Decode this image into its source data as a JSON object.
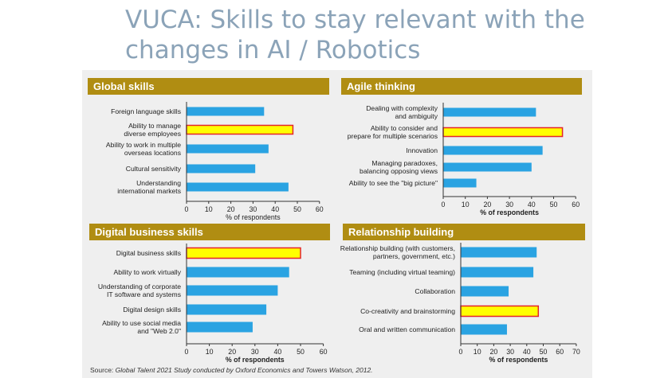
{
  "title": "VUCA: Skills to stay relevant with the changes in AI / Robotics",
  "colors": {
    "bar": "#2aa3e2",
    "highlight_fill": "#ffff00",
    "highlight_border": "#e4242b",
    "panel_header": "#b08d12",
    "panel_header_text": "#ffffff"
  },
  "source": {
    "prefix": "Source: ",
    "italic": "Global Talent 2021 Study conducted by Oxford Economics and Towers Watson, 2012."
  },
  "chart_data": [
    {
      "type": "bar",
      "orientation": "horizontal",
      "title": "Global skills",
      "xlabel": "% of respondents",
      "xlim": [
        0,
        60
      ],
      "ticks": [
        0,
        10,
        20,
        30,
        40,
        50,
        60
      ],
      "categories": [
        [
          "Foreign language skills"
        ],
        [
          "Ability to manage",
          "diverse employees"
        ],
        [
          "Ability to work in multiple",
          "overseas locations"
        ],
        [
          "Cultural sensitivity"
        ],
        [
          "Understanding",
          "international markets"
        ]
      ],
      "values": [
        35,
        48,
        37,
        31,
        46
      ],
      "highlight": [
        1
      ]
    },
    {
      "type": "bar",
      "orientation": "horizontal",
      "title": "Agile thinking",
      "xlabel": "% of respondents",
      "xlim": [
        0,
        60
      ],
      "ticks": [
        0,
        10,
        20,
        30,
        40,
        50,
        60
      ],
      "categories": [
        [
          "Dealing with complexity",
          "and ambiguity"
        ],
        [
          "Ability to consider and",
          "prepare for multiple scenarios"
        ],
        [
          "Innovation"
        ],
        [
          "Managing paradoxes,",
          "balancing opposing views"
        ],
        [
          "Ability to see the \"big picture\""
        ]
      ],
      "values": [
        42,
        54,
        45,
        40,
        15
      ],
      "highlight": [
        1
      ]
    },
    {
      "type": "bar",
      "orientation": "horizontal",
      "title": "Digital business skills",
      "xlabel": "% of respondents",
      "xlim": [
        0,
        60
      ],
      "ticks": [
        0,
        10,
        20,
        30,
        40,
        50,
        60
      ],
      "categories": [
        [
          "Digital business skills"
        ],
        [
          "Ability to work virtually"
        ],
        [
          "Understanding of corporate",
          "IT software and systems"
        ],
        [
          "Digital design skills"
        ],
        [
          "Ability to use social media",
          "and \"Web 2.0\""
        ]
      ],
      "values": [
        50,
        45,
        40,
        35,
        29
      ],
      "highlight": [
        0
      ]
    },
    {
      "type": "bar",
      "orientation": "horizontal",
      "title": "Relationship building",
      "xlabel": "% of respondents",
      "xlim": [
        0,
        70
      ],
      "ticks": [
        0,
        10,
        20,
        30,
        40,
        50,
        60,
        70
      ],
      "categories": [
        [
          "Relationship building (with customers,",
          "partners, government, etc.)"
        ],
        [
          "Teaming (including virtual teaming)"
        ],
        [
          "Collaboration"
        ],
        [
          "Co-creativity and brainstorming"
        ],
        [
          "Oral and written communication"
        ]
      ],
      "values": [
        46,
        44,
        29,
        47,
        28
      ],
      "highlight": [
        3
      ]
    }
  ]
}
